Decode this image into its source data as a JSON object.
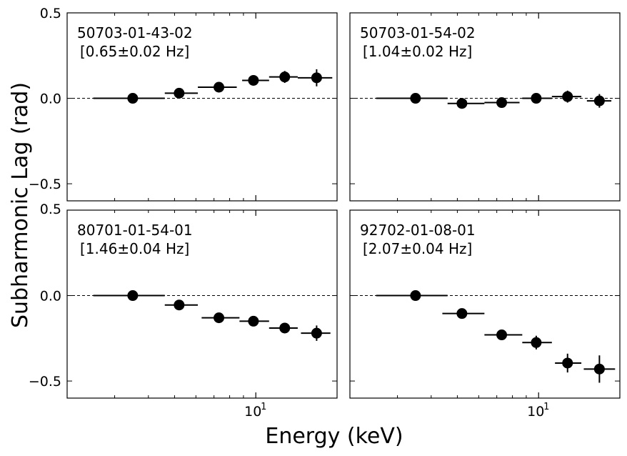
{
  "figure": {
    "xlabel": "Energy (keV)",
    "ylabel": "Subharmonic Lag (rad)"
  },
  "chart_data": [
    {
      "type": "scatter",
      "panel": "top-left",
      "obsid": "50703-01-43-02",
      "freq_label": "[0.65±0.02 Hz]",
      "xscale": "log",
      "xlim": [
        2.0,
        20.0
      ],
      "ylim": [
        -0.6,
        0.5
      ],
      "yticks": [
        0.5,
        0.0,
        -0.5
      ],
      "ytick_labels": [
        "0.5",
        "0.0",
        "−0.5"
      ],
      "xtick_label": "10",
      "xtick_sup": "1",
      "reference_line": 0,
      "points": [
        {
          "x": 3.5,
          "xlo": 2.5,
          "xhi": 4.6,
          "y": 0.0,
          "yerr": 0.01
        },
        {
          "x": 5.2,
          "xlo": 4.6,
          "xhi": 6.1,
          "y": 0.03,
          "yerr": 0.015
        },
        {
          "x": 7.3,
          "xlo": 6.1,
          "xhi": 8.5,
          "y": 0.065,
          "yerr": 0.02
        },
        {
          "x": 9.8,
          "xlo": 8.9,
          "xhi": 11.2,
          "y": 0.105,
          "yerr": 0.025
        },
        {
          "x": 12.8,
          "xlo": 11.2,
          "xhi": 14.3,
          "y": 0.125,
          "yerr": 0.035
        },
        {
          "x": 16.8,
          "xlo": 14.3,
          "xhi": 19.2,
          "y": 0.12,
          "yerr": 0.05
        }
      ]
    },
    {
      "type": "scatter",
      "panel": "top-right",
      "obsid": "50703-01-54-02",
      "freq_label": "[1.04±0.02 Hz]",
      "xscale": "log",
      "xlim": [
        2.0,
        20.0
      ],
      "ylim": [
        -0.6,
        0.5
      ],
      "yticks": [
        0.5,
        0.0,
        -0.5
      ],
      "ytick_labels": [
        "0.5",
        "0.0",
        "−0.5"
      ],
      "xtick_label": "10",
      "xtick_sup": "1",
      "reference_line": 0,
      "points": [
        {
          "x": 3.5,
          "xlo": 2.5,
          "xhi": 4.6,
          "y": 0.0,
          "yerr": 0.01
        },
        {
          "x": 5.2,
          "xlo": 4.6,
          "xhi": 6.3,
          "y": -0.03,
          "yerr": 0.015
        },
        {
          "x": 7.3,
          "xlo": 6.3,
          "xhi": 8.5,
          "y": -0.025,
          "yerr": 0.02
        },
        {
          "x": 9.8,
          "xlo": 8.7,
          "xhi": 11.2,
          "y": 0.0,
          "yerr": 0.025
        },
        {
          "x": 12.8,
          "xlo": 11.2,
          "xhi": 14.4,
          "y": 0.01,
          "yerr": 0.035
        },
        {
          "x": 16.8,
          "xlo": 15.1,
          "xhi": 18.6,
          "y": -0.015,
          "yerr": 0.04
        }
      ]
    },
    {
      "type": "scatter",
      "panel": "bottom-left",
      "obsid": "80701-01-54-01",
      "freq_label": "[1.46±0.04 Hz]",
      "xscale": "log",
      "xlim": [
        2.0,
        20.0
      ],
      "ylim": [
        -0.6,
        0.5
      ],
      "yticks": [
        0.5,
        0.0,
        -0.5
      ],
      "ytick_labels": [
        "0.5",
        "0.0",
        "−0.5"
      ],
      "xtick_label": "10",
      "xtick_sup": "1",
      "reference_line": 0,
      "points": [
        {
          "x": 3.5,
          "xlo": 2.5,
          "xhi": 4.6,
          "y": 0.0,
          "yerr": 0.01
        },
        {
          "x": 5.2,
          "xlo": 4.6,
          "xhi": 6.1,
          "y": -0.055,
          "yerr": 0.015
        },
        {
          "x": 7.3,
          "xlo": 6.3,
          "xhi": 8.7,
          "y": -0.13,
          "yerr": 0.02
        },
        {
          "x": 9.8,
          "xlo": 8.7,
          "xhi": 11.2,
          "y": -0.15,
          "yerr": 0.025
        },
        {
          "x": 12.8,
          "xlo": 11.2,
          "xhi": 14.3,
          "y": -0.19,
          "yerr": 0.03
        },
        {
          "x": 16.8,
          "xlo": 14.7,
          "xhi": 18.9,
          "y": -0.22,
          "yerr": 0.045
        }
      ]
    },
    {
      "type": "scatter",
      "panel": "bottom-right",
      "obsid": "92702-01-08-01",
      "freq_label": "[2.07±0.04 Hz]",
      "xscale": "log",
      "xlim": [
        2.0,
        20.0
      ],
      "ylim": [
        -0.6,
        0.5
      ],
      "yticks": [
        0.5,
        0.0,
        -0.5
      ],
      "ytick_labels": [
        "0.5",
        "0.0",
        "−0.5"
      ],
      "xtick_label": "10",
      "xtick_sup": "1",
      "reference_line": 0,
      "points": [
        {
          "x": 3.5,
          "xlo": 2.5,
          "xhi": 4.6,
          "y": 0.0,
          "yerr": 0.01
        },
        {
          "x": 5.2,
          "xlo": 4.4,
          "xhi": 6.3,
          "y": -0.105,
          "yerr": 0.02
        },
        {
          "x": 7.3,
          "xlo": 6.3,
          "xhi": 8.7,
          "y": -0.23,
          "yerr": 0.03
        },
        {
          "x": 9.8,
          "xlo": 8.7,
          "xhi": 11.2,
          "y": -0.275,
          "yerr": 0.04
        },
        {
          "x": 12.8,
          "xlo": 11.5,
          "xhi": 14.4,
          "y": -0.395,
          "yerr": 0.055
        },
        {
          "x": 16.8,
          "xlo": 14.7,
          "xhi": 19.2,
          "y": -0.43,
          "yerr": 0.08
        }
      ]
    }
  ]
}
